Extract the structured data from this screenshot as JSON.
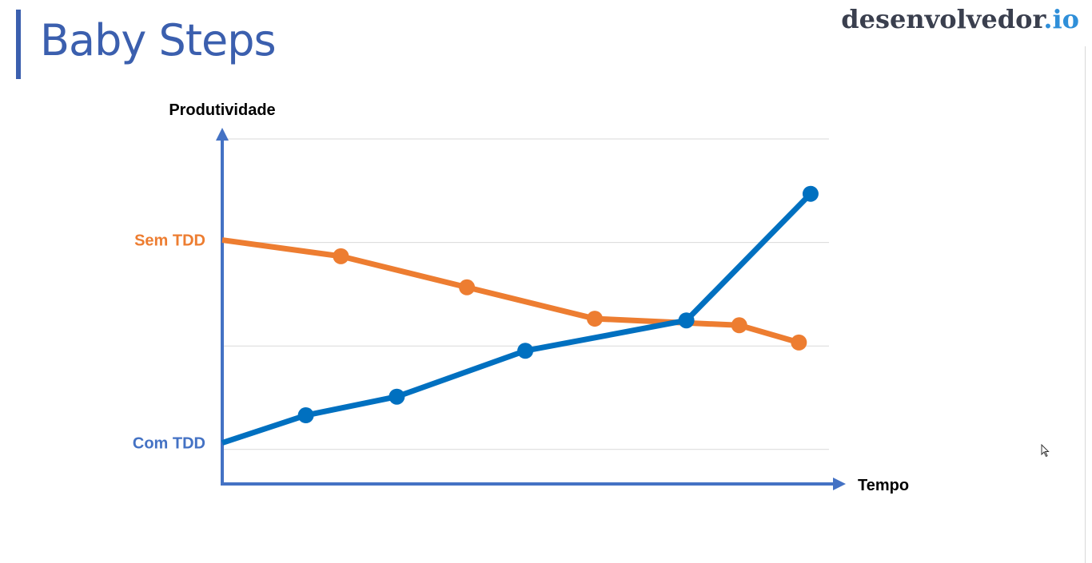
{
  "slide": {
    "title": "Baby Steps",
    "logo_main": "desenvolvedor",
    "logo_tld": ".io"
  },
  "chart_data": {
    "type": "line",
    "title": "",
    "xlabel": "Tempo",
    "ylabel": "Produtividade",
    "xlim": [
      0,
      10
    ],
    "ylim": [
      0,
      10
    ],
    "grid": true,
    "y_gridlines": [
      1,
      4,
      7,
      10
    ],
    "tick_labels": [
      {
        "id": "sem",
        "text": "Sem TDD",
        "y": 7.07,
        "color": "#ed7d31"
      },
      {
        "id": "com",
        "text": "Com TDD",
        "y": 1.19,
        "color": "#4472c4"
      }
    ],
    "series": [
      {
        "name": "Sem TDD",
        "color": "#ed7d31",
        "x": [
          0,
          1.93,
          3.98,
          6.06,
          8.41,
          9.38
        ],
        "y": [
          7.07,
          6.6,
          5.7,
          4.79,
          4.6,
          4.1
        ],
        "markers": [
          false,
          true,
          true,
          true,
          true,
          true
        ]
      },
      {
        "name": "Com TDD",
        "color": "#0070c0",
        "x": [
          0,
          1.36,
          2.84,
          4.93,
          7.55,
          9.57
        ],
        "y": [
          1.19,
          1.99,
          2.53,
          3.86,
          4.74,
          8.41
        ],
        "markers": [
          false,
          true,
          true,
          true,
          true,
          true
        ]
      }
    ]
  }
}
